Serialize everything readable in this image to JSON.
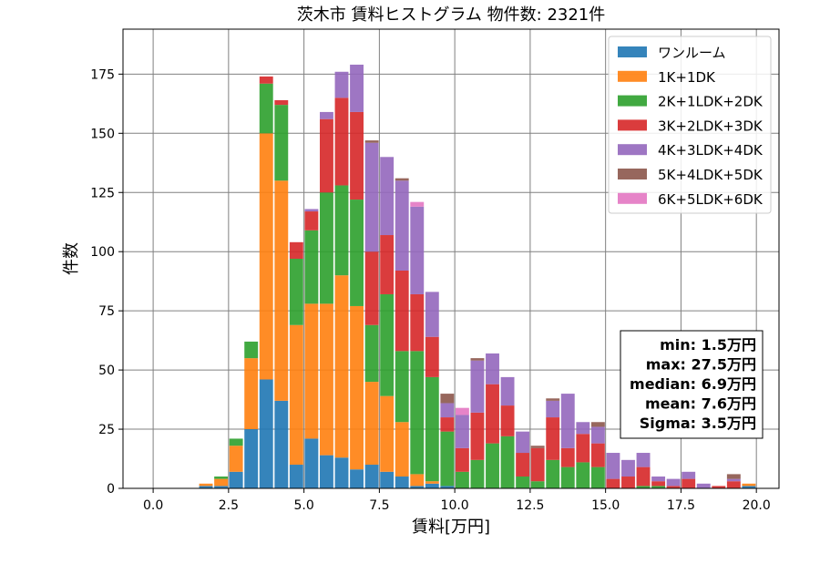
{
  "chart_data": {
    "type": "bar",
    "stacked": true,
    "title": "茨木市 賃料ヒストグラム  物件数: 2321件",
    "xlabel": "賃料[万円]",
    "ylabel": "件数",
    "xlim": [
      -1.0,
      20.75
    ],
    "ylim": [
      0,
      194
    ],
    "xticks": [
      0.0,
      2.5,
      5.0,
      7.5,
      10.0,
      12.5,
      15.0,
      17.5,
      20.0
    ],
    "xtick_labels": [
      "0.0",
      "2.5",
      "5.0",
      "7.5",
      "10.0",
      "12.5",
      "15.0",
      "17.5",
      "20.0"
    ],
    "yticks": [
      0,
      25,
      50,
      75,
      100,
      125,
      150,
      175
    ],
    "ytick_labels": [
      "0",
      "25",
      "50",
      "75",
      "100",
      "125",
      "150",
      "175"
    ],
    "grid": true,
    "legend_position": "top-right",
    "bin_width": 0.5,
    "bin_starts": [
      1.5,
      2.0,
      2.5,
      3.0,
      3.5,
      4.0,
      4.5,
      5.0,
      5.5,
      6.0,
      6.5,
      7.0,
      7.5,
      8.0,
      8.5,
      9.0,
      9.5,
      10.0,
      10.5,
      11.0,
      11.5,
      12.0,
      12.5,
      13.0,
      13.5,
      14.0,
      14.5,
      15.0,
      15.5,
      16.0,
      16.5,
      17.0,
      17.5,
      18.0,
      18.5,
      19.0,
      19.5
    ],
    "series": [
      {
        "name": "ワンルーム",
        "color": "#1f77b4",
        "values": [
          1,
          1,
          7,
          25,
          46,
          37,
          10,
          21,
          14,
          13,
          8,
          10,
          7,
          5,
          1,
          2,
          1,
          0,
          0,
          0,
          0,
          0,
          0,
          0,
          0,
          0,
          0,
          0,
          0,
          0,
          0,
          0,
          0,
          0,
          0,
          0,
          1
        ]
      },
      {
        "name": "1K+1DK",
        "color": "#ff7f0e",
        "values": [
          1,
          3,
          11,
          30,
          104,
          93,
          59,
          57,
          64,
          77,
          69,
          35,
          32,
          23,
          5,
          1,
          0,
          0,
          0,
          0,
          0,
          0,
          0,
          0,
          0,
          0,
          0,
          0,
          0,
          0,
          0,
          0,
          0,
          0,
          0,
          0,
          1
        ]
      },
      {
        "name": "2K+1LDK+2DK",
        "color": "#2ca02c",
        "values": [
          0,
          1,
          3,
          7,
          21,
          32,
          28,
          31,
          47,
          38,
          45,
          24,
          43,
          30,
          52,
          44,
          23,
          7,
          12,
          19,
          22,
          5,
          3,
          12,
          9,
          11,
          9,
          0,
          0,
          1,
          1,
          0,
          0,
          0,
          0,
          0,
          0
        ]
      },
      {
        "name": "3K+2LDK+3DK",
        "color": "#d62728",
        "values": [
          0,
          0,
          0,
          0,
          3,
          2,
          7,
          8,
          31,
          37,
          37,
          31,
          25,
          34,
          24,
          17,
          6,
          10,
          20,
          25,
          13,
          10,
          14,
          18,
          8,
          12,
          10,
          4,
          5,
          8,
          2,
          1,
          4,
          0,
          1,
          3,
          0
        ]
      },
      {
        "name": "4K+3LDK+4DK",
        "color": "#9467bd",
        "values": [
          0,
          0,
          0,
          0,
          0,
          0,
          0,
          1,
          3,
          11,
          20,
          46,
          33,
          38,
          37,
          19,
          6,
          14,
          22,
          13,
          12,
          9,
          0,
          7,
          23,
          5,
          7,
          11,
          7,
          6,
          2,
          3,
          3,
          2,
          0,
          1,
          0
        ]
      },
      {
        "name": "5K+4LDK+5DK",
        "color": "#8c564b",
        "values": [
          0,
          0,
          0,
          0,
          0,
          0,
          0,
          0,
          0,
          0,
          0,
          1,
          0,
          1,
          0,
          0,
          4,
          0,
          1,
          0,
          0,
          0,
          1,
          1,
          0,
          0,
          2,
          0,
          0,
          0,
          0,
          0,
          0,
          0,
          0,
          2,
          0
        ]
      },
      {
        "name": "6K+5LDK+6DK",
        "color": "#e377c2",
        "values": [
          0,
          0,
          0,
          0,
          0,
          0,
          0,
          0,
          0,
          0,
          0,
          0,
          0,
          0,
          2,
          0,
          0,
          3,
          0,
          0,
          0,
          0,
          0,
          0,
          0,
          0,
          0,
          0,
          0,
          0,
          0,
          0,
          0,
          0,
          0,
          0,
          0
        ]
      }
    ],
    "stats_box": [
      "min: 1.5万円",
      "max: 27.5万円",
      "median: 6.9万円",
      "mean: 7.6万円",
      "Sigma: 3.5万円"
    ]
  }
}
